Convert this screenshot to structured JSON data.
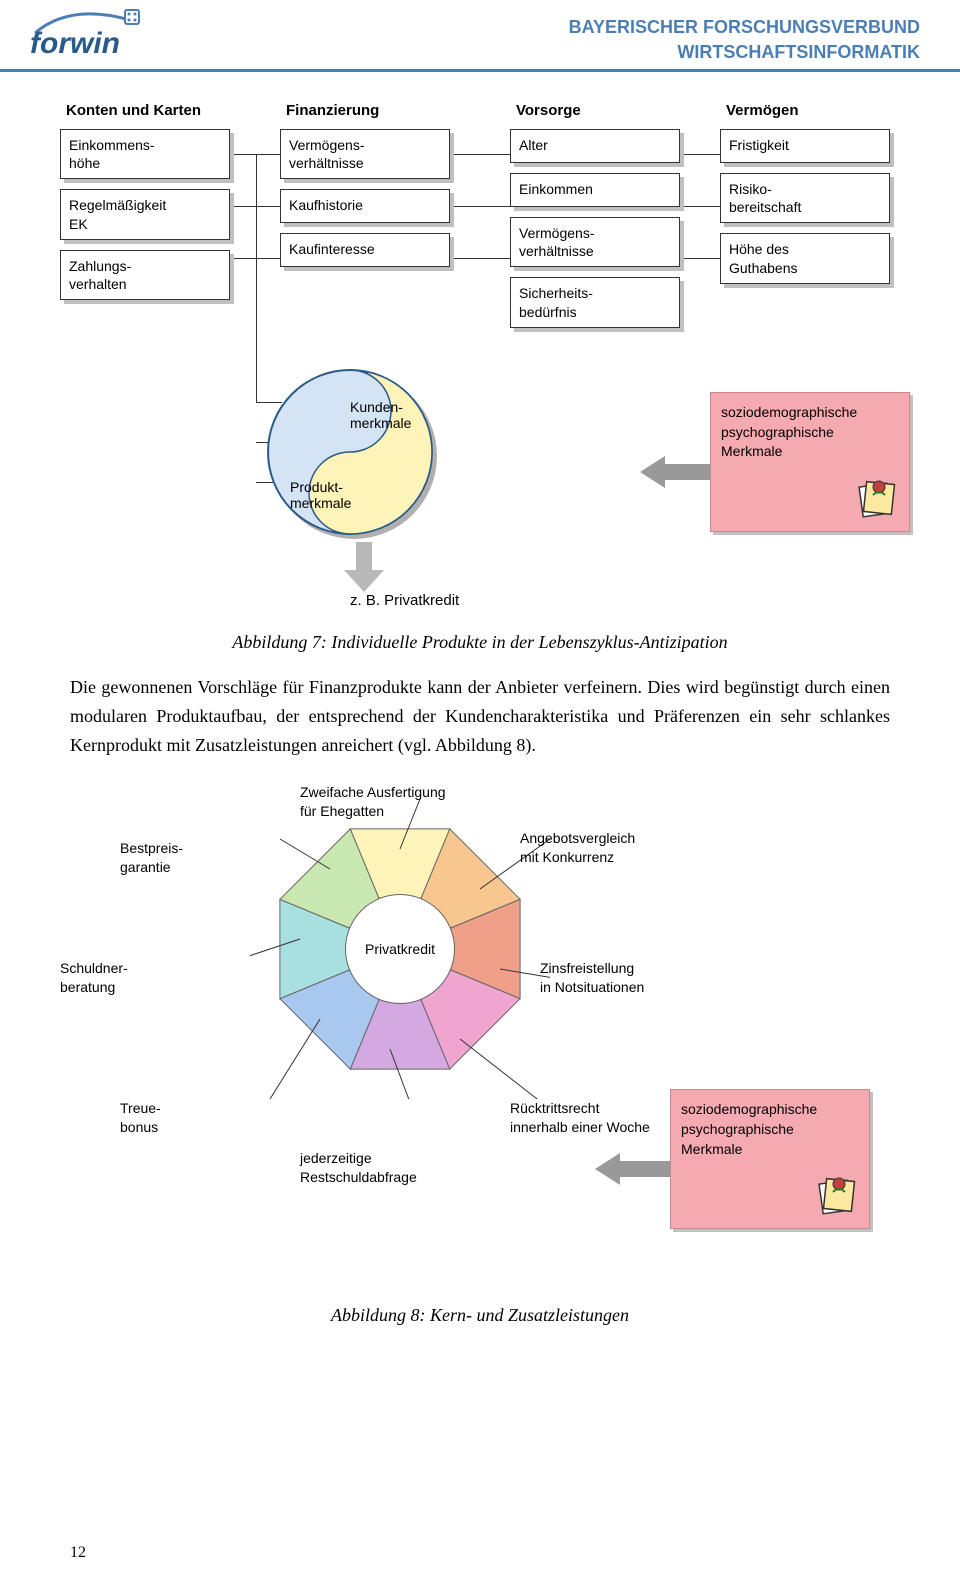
{
  "header": {
    "logo_text": "forwin",
    "line1": "BAYERISCHER FORSCHUNGSVERBUND",
    "line2": "WIRTSCHAFTSINFORMATIK",
    "logo_color": "#2a5a8a",
    "header_color": "#4b7fb3"
  },
  "figure7": {
    "columns": [
      {
        "header": "Konten und Karten",
        "boxes": [
          "Einkommens-\nhöhe",
          "Regelmäßigkeit\nEK",
          "Zahlungs-\nverhalten"
        ]
      },
      {
        "header": "Finanzierung",
        "boxes": [
          "Vermögens-\nverhältnisse",
          "Kaufhistorie",
          "Kaufinteresse"
        ]
      },
      {
        "header": "Vorsorge",
        "boxes": [
          "Alter",
          "Einkommen",
          "Vermögens-\nverhältnisse",
          "Sicherheits-\nbedürfnis"
        ]
      },
      {
        "header": "Vermögen",
        "boxes": [
          "Fristigkeit",
          "Risiko-\nbereitschaft",
          "Höhe des\nGuthabens"
        ]
      }
    ],
    "yinyang": {
      "label1": "Produkt-\nmerkmale",
      "label2": "Kunden-\nmerkmale",
      "color1": "#d4e4f4",
      "color2": "#fff4b8",
      "border": "#2a5a8a"
    },
    "pink_box_lines": [
      "soziodemographische",
      "psychographische",
      "Merkmale"
    ],
    "pink_box_bg": "#f4aab0",
    "zb_label": "z. B. Privatkredit",
    "arrow_color": "#999999",
    "caption": "Abbildung 7:  Individuelle Produkte in der Lebenszyklus-Antizipation"
  },
  "body_text": "Die gewonnenen Vorschläge für Finanzprodukte kann der Anbieter verfeinern. Dies wird begünstigt durch einen modularen Produktaufbau, der entsprechend der Kundencharakteristika und Präferenzen ein sehr schlankes Kernprodukt mit Zusatzleistungen anreichert (vgl. Abbildung 8).",
  "figure8": {
    "center_label": "Privatkredit",
    "segments": [
      {
        "color": "#fff4b8",
        "label": "Zweifache Ausfertigung\nfür Ehegatten",
        "label_pos": "top"
      },
      {
        "color": "#f7c78f",
        "label": "Angebotsvergleich\nmit Konkurrenz",
        "label_pos": "top-right"
      },
      {
        "color": "#f0a088",
        "label": "Zinsfreistellung\nin Notsituationen",
        "label_pos": "right"
      },
      {
        "color": "#f0a4d0",
        "label": "Rücktrittsrecht\ninnerhalb einer Woche",
        "label_pos": "bottom-right"
      },
      {
        "color": "#d4a8e0",
        "label": "jederzeitige\nRestschuldabfrage",
        "label_pos": "bottom"
      },
      {
        "color": "#a8c8f0",
        "label": "Treue-\nbonus",
        "label_pos": "bottom-left"
      },
      {
        "color": "#a8e0e0",
        "label": "Schuldner-\nberatung",
        "label_pos": "left"
      },
      {
        "color": "#c8e8b0",
        "label": "Bestpreis-\ngarantie",
        "label_pos": "top-left"
      }
    ],
    "pink_box_lines": [
      "soziodemographische",
      "psychographische",
      "Merkmale"
    ],
    "caption": "Abbildung 8:  Kern- und Zusatzleistungen"
  },
  "page_number": "12"
}
